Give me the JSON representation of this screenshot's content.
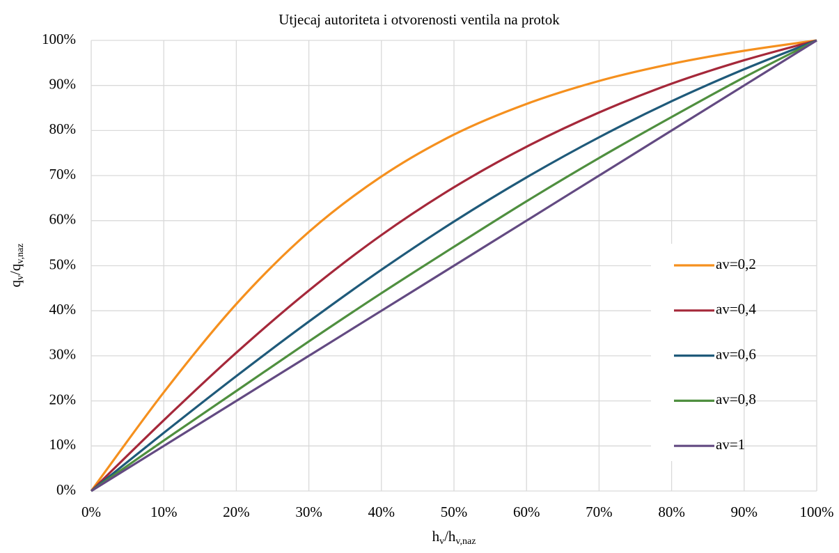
{
  "chart_data": {
    "type": "line",
    "title": "Utjecaj autoriteta i otvorenosti ventila na protok",
    "x_label": [
      "h",
      "v",
      "/h",
      "v,naz"
    ],
    "y_label": [
      "q",
      "v",
      "/q",
      "v,naz"
    ],
    "x": [
      0,
      10,
      20,
      30,
      40,
      50,
      60,
      70,
      80,
      90,
      100
    ],
    "series": [
      {
        "name": "av=0,2",
        "color": "#f5901e",
        "values": [
          0,
          21.9,
          41.5,
          57.5,
          69.8,
          79.1,
          85.9,
          91.0,
          94.8,
          97.7,
          100
        ]
      },
      {
        "name": "av=0,4",
        "color": "#a5283a",
        "values": [
          0,
          15.7,
          30.7,
          44.5,
          56.8,
          67.4,
          76.4,
          84.0,
          90.4,
          95.6,
          100
        ]
      },
      {
        "name": "av=0,6",
        "color": "#1f5a7a",
        "values": [
          0,
          12.9,
          25.5,
          37.6,
          49.1,
          59.8,
          69.6,
          78.5,
          86.5,
          93.6,
          100
        ]
      },
      {
        "name": "av=0,8",
        "color": "#4f8f3f",
        "values": [
          0,
          11.2,
          22.2,
          33.2,
          43.9,
          54.2,
          64.3,
          73.9,
          83.0,
          91.8,
          100
        ]
      },
      {
        "name": "av=1",
        "color": "#634a82",
        "values": [
          0,
          10,
          20,
          30,
          40,
          50,
          60,
          70,
          80,
          90,
          100
        ]
      }
    ],
    "xlim": [
      0,
      100
    ],
    "ylim": [
      0,
      100
    ],
    "xticks": [
      {
        "value": 0,
        "label": "0%"
      },
      {
        "value": 10,
        "label": "10%"
      },
      {
        "value": 20,
        "label": "20%"
      },
      {
        "value": 30,
        "label": "30%"
      },
      {
        "value": 40,
        "label": "40%"
      },
      {
        "value": 50,
        "label": "50%"
      },
      {
        "value": 60,
        "label": "60%"
      },
      {
        "value": 70,
        "label": "70%"
      },
      {
        "value": 80,
        "label": "80%"
      },
      {
        "value": 90,
        "label": "90%"
      },
      {
        "value": 100,
        "label": "100%"
      }
    ],
    "yticks": [
      {
        "value": 0,
        "label": "0%"
      },
      {
        "value": 10,
        "label": "10%"
      },
      {
        "value": 20,
        "label": "20%"
      },
      {
        "value": 30,
        "label": "30%"
      },
      {
        "value": 40,
        "label": "40%"
      },
      {
        "value": 50,
        "label": "50%"
      },
      {
        "value": 60,
        "label": "60%"
      },
      {
        "value": 70,
        "label": "70%"
      },
      {
        "value": 80,
        "label": "80%"
      },
      {
        "value": 90,
        "label": "90%"
      },
      {
        "value": 100,
        "label": "100%"
      }
    ],
    "grid": true,
    "legend": "right"
  }
}
